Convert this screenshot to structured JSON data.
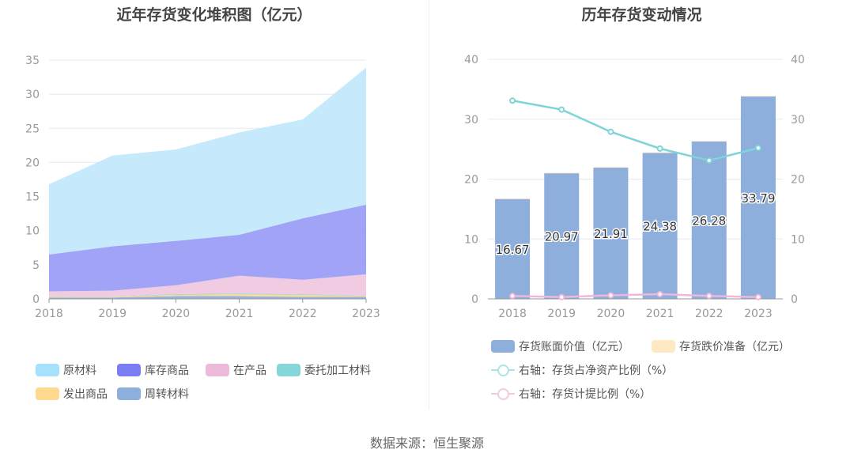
{
  "left_title": "近年存货变化堆积图（亿元）",
  "right_title": "历年存货变动情况",
  "source": "数据来源：恒生聚源",
  "chart_data": [
    {
      "type": "area",
      "stacked": true,
      "title": "近年存货变化堆积图（亿元）",
      "categories": [
        "2018",
        "2019",
        "2020",
        "2021",
        "2022",
        "2023"
      ],
      "ylim": [
        0,
        35
      ],
      "yticks": [
        "0",
        "5",
        "10",
        "15",
        "20",
        "25",
        "30",
        "35"
      ],
      "grid": true,
      "legend_placement": "bottom",
      "series": [
        {
          "name": "周转材料",
          "color": "#8eaedc",
          "values": [
            0.2,
            0.2,
            0.4,
            0.4,
            0.3,
            0.3
          ]
        },
        {
          "name": "发出商品",
          "color": "#ffd990",
          "values": [
            0.1,
            0.1,
            0.2,
            0.3,
            0.3,
            0.1
          ]
        },
        {
          "name": "委托加工材料",
          "color": "#86d6d9",
          "values": [
            0.05,
            0.05,
            0.1,
            0.1,
            0.1,
            0.05
          ]
        },
        {
          "name": "在产品",
          "color": "#f0c8e0",
          "values": [
            0.75,
            0.85,
            1.3,
            2.6,
            2.1,
            3.15
          ]
        },
        {
          "name": "库存商品",
          "color": "#9c9ef7",
          "values": [
            5.4,
            6.5,
            6.5,
            6.0,
            9.0,
            10.2
          ]
        },
        {
          "name": "原材料",
          "color": "#c3e8fb",
          "values": [
            10.3,
            13.3,
            13.4,
            15.0,
            14.5,
            20.1
          ]
        }
      ],
      "legend_order": [
        "原材料",
        "库存商品",
        "在产品",
        "委托加工材料",
        "发出商品",
        "周转材料"
      ],
      "legend_colors": {
        "原材料": "#a6e1fb",
        "库存商品": "#7b7ef2",
        "在产品": "#ebbbd9",
        "委托加工材料": "#86d6d9",
        "发出商品": "#ffd990",
        "周转材料": "#8eaedc"
      }
    },
    {
      "type": "bar",
      "title": "历年存货变动情况",
      "categories": [
        "2018",
        "2019",
        "2020",
        "2021",
        "2022",
        "2023"
      ],
      "ylim": [
        0,
        40
      ],
      "yticks": [
        "0",
        "10",
        "20",
        "30",
        "40"
      ],
      "y2lim": [
        0,
        40
      ],
      "y2ticks": [
        "0",
        "10",
        "20",
        "30",
        "40"
      ],
      "grid": true,
      "legend_placement": "bottom",
      "series": [
        {
          "name": "存货账面价值（亿元）",
          "type": "bar",
          "stack": "a",
          "color": "#8eaedc",
          "values": [
            16.67,
            20.97,
            21.91,
            24.38,
            26.28,
            33.79
          ],
          "labels": [
            "16.67",
            "20.97",
            "21.91",
            "24.38",
            "26.28",
            "33.79"
          ]
        },
        {
          "name": "存货跌价准备（亿元）",
          "type": "bar",
          "stack": "a",
          "color": "#ffe8c4",
          "values": [
            0.1,
            0.1,
            0.1,
            0.1,
            0.1,
            0.1
          ]
        },
        {
          "name": "右轴：存货占净资产比例（%）",
          "type": "line",
          "axis": "right",
          "color": "#7fd4d6",
          "values": [
            33.1,
            31.6,
            27.9,
            25.1,
            23.1,
            25.2
          ]
        },
        {
          "name": "右轴：存货计提比例（%）",
          "type": "line",
          "axis": "right",
          "color": "#eeb7dc",
          "values": [
            0.5,
            0.3,
            0.6,
            0.8,
            0.5,
            0.3
          ]
        }
      ]
    }
  ]
}
